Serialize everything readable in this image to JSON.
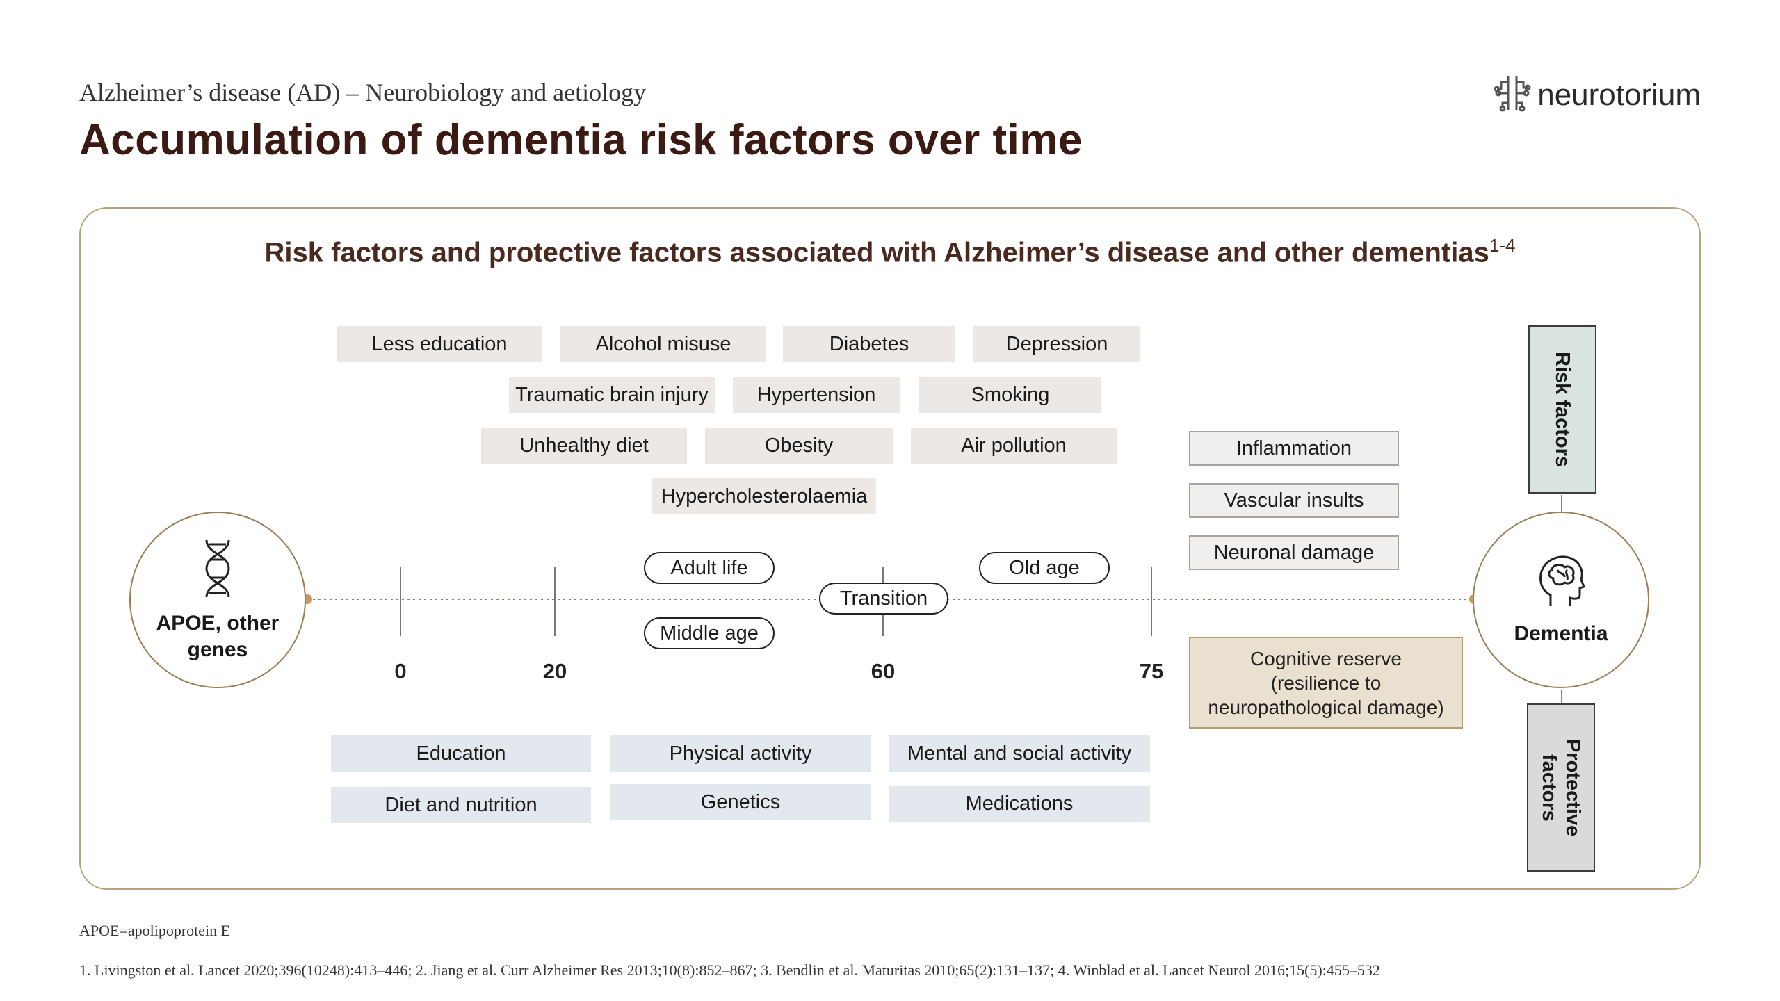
{
  "header": {
    "subtitle": "Alzheimer’s  disease (AD) – Neurobiology  and aetiology",
    "title": "Accumulation of dementia risk factors over time",
    "logo_text": "neurotorium",
    "logo_icon": "brain-circuit-icon"
  },
  "panel": {
    "heading": "Risk factors and protective factors associated with  Alzheimer’s  disease and other dementias",
    "heading_refs": "1-4"
  },
  "risk_factors": [
    "Less education",
    "Alcohol misuse",
    "Diabetes",
    "Depression",
    "Traumatic brain injury",
    "Hypertension",
    "Smoking",
    "Unhealthy  diet",
    "Obesity",
    "Air pollution",
    "Hypercholesterolaemia"
  ],
  "late_factors": [
    "Inflammation",
    "Vascular insults",
    "Neuronal damage"
  ],
  "cognitive_reserve": "Cognitive reserve\n(resilience to\nneuropathological damage)",
  "protective_factors": [
    "Education",
    "Physical activity",
    "Mental  and social activity",
    "Diet and nutrition",
    "Genetics",
    "Medications"
  ],
  "timeline": {
    "start_label": "APOE, other\ngenes",
    "start_icon": "dna-icon",
    "end_label": "Dementia",
    "end_icon": "head-brain-icon",
    "ticks": [
      "0",
      "20",
      "60",
      "75"
    ],
    "stages": [
      "Adult life",
      "Middle  age",
      "Transition",
      "Old age"
    ]
  },
  "side_labels": {
    "risk": "Risk factors",
    "protective": "Protective\nfactors"
  },
  "colors": {
    "title": "#3a1a12",
    "accent": "#b9a27c",
    "risk_box": "#ebe8e5",
    "protective_box": "#e3e7ee",
    "reserve_box": "#e9e0cf",
    "risk_side": "#d9e3e0",
    "protective_side": "#dadada"
  },
  "footer": {
    "abbreviation": "APOE=apolipoprotein E",
    "references": "1. Livingston et al. Lancet 2020;396(10248):413–446; 2. Jiang et al. Curr Alzheimer Res 2013;10(8):852–867; 3. Bendlin et al. Maturitas 2010;65(2):131–137; 4. Winblad et al. Lancet Neurol 2016;15(5):455–532"
  }
}
